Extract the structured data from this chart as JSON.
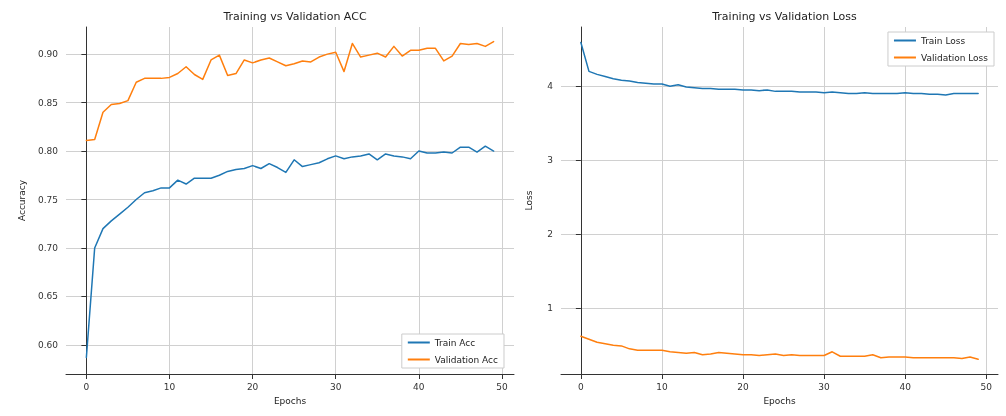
{
  "chart_data": [
    {
      "type": "line",
      "title": "Training vs Validation ACC",
      "xlabel": "Epochs",
      "ylabel": "Accuracy",
      "x": [
        0,
        1,
        2,
        3,
        4,
        5,
        6,
        7,
        8,
        9,
        10,
        11,
        12,
        13,
        14,
        15,
        16,
        17,
        18,
        19,
        20,
        21,
        22,
        23,
        24,
        25,
        26,
        27,
        28,
        29,
        30,
        31,
        32,
        33,
        34,
        35,
        36,
        37,
        38,
        39,
        40,
        41,
        42,
        43,
        44,
        45,
        46,
        47,
        48,
        49
      ],
      "series": [
        {
          "name": "Train Acc",
          "color": "#1f77b4",
          "values": [
            0.587,
            0.7,
            0.72,
            0.728,
            0.735,
            0.742,
            0.75,
            0.757,
            0.759,
            0.762,
            0.762,
            0.77,
            0.766,
            0.772,
            0.772,
            0.772,
            0.775,
            0.779,
            0.781,
            0.782,
            0.785,
            0.782,
            0.787,
            0.783,
            0.778,
            0.791,
            0.784,
            0.786,
            0.788,
            0.792,
            0.795,
            0.792,
            0.794,
            0.795,
            0.797,
            0.791,
            0.797,
            0.795,
            0.794,
            0.792,
            0.8,
            0.798,
            0.798,
            0.799,
            0.798,
            0.804,
            0.804,
            0.799,
            0.805,
            0.8
          ]
        },
        {
          "name": "Validation Acc",
          "color": "#ff7f0e",
          "values": [
            0.811,
            0.812,
            0.84,
            0.848,
            0.849,
            0.852,
            0.871,
            0.875,
            0.875,
            0.875,
            0.876,
            0.88,
            0.887,
            0.879,
            0.874,
            0.894,
            0.899,
            0.878,
            0.88,
            0.894,
            0.891,
            0.894,
            0.896,
            0.892,
            0.888,
            0.89,
            0.893,
            0.892,
            0.897,
            0.9,
            0.902,
            0.882,
            0.911,
            0.897,
            0.899,
            0.901,
            0.897,
            0.908,
            0.898,
            0.904,
            0.904,
            0.906,
            0.906,
            0.893,
            0.898,
            0.911,
            0.91,
            0.911,
            0.908,
            0.913
          ]
        }
      ],
      "xlim": [
        -2.45,
        51.45
      ],
      "xticks": [
        0,
        10,
        20,
        30,
        40,
        50
      ],
      "ylim": [
        0.57,
        0.928
      ],
      "yticks": [
        {
          "value": 0.6,
          "label": "0.60"
        },
        {
          "value": 0.65,
          "label": "0.65"
        },
        {
          "value": 0.7,
          "label": "0.70"
        },
        {
          "value": 0.75,
          "label": "0.75"
        },
        {
          "value": 0.8,
          "label": "0.80"
        },
        {
          "value": 0.85,
          "label": "0.85"
        },
        {
          "value": 0.9,
          "label": "0.90"
        }
      ],
      "grid": true,
      "legend": "bottom right",
      "marker": "none",
      "line_style": "solid"
    },
    {
      "type": "line",
      "title": "Training vs Validation Loss",
      "xlabel": "Epochs",
      "ylabel": "Loss",
      "x": [
        0,
        1,
        2,
        3,
        4,
        5,
        6,
        7,
        8,
        9,
        10,
        11,
        12,
        13,
        14,
        15,
        16,
        17,
        18,
        19,
        20,
        21,
        22,
        23,
        24,
        25,
        26,
        27,
        28,
        29,
        30,
        31,
        32,
        33,
        34,
        35,
        36,
        37,
        38,
        39,
        40,
        41,
        42,
        43,
        44,
        45,
        46,
        47,
        48,
        49
      ],
      "series": [
        {
          "name": "Train Loss",
          "color": "#1f77b4",
          "values": [
            4.59,
            4.2,
            4.16,
            4.13,
            4.1,
            4.08,
            4.07,
            4.05,
            4.04,
            4.03,
            4.03,
            4.0,
            4.02,
            3.99,
            3.98,
            3.97,
            3.97,
            3.96,
            3.96,
            3.96,
            3.95,
            3.95,
            3.94,
            3.95,
            3.93,
            3.93,
            3.93,
            3.92,
            3.92,
            3.92,
            3.91,
            3.92,
            3.91,
            3.9,
            3.9,
            3.91,
            3.9,
            3.9,
            3.9,
            3.9,
            3.91,
            3.9,
            3.9,
            3.89,
            3.89,
            3.88,
            3.9,
            3.9,
            3.9,
            3.9
          ]
        },
        {
          "name": "Validation Loss",
          "color": "#ff7f0e",
          "values": [
            0.62,
            0.58,
            0.54,
            0.52,
            0.5,
            0.49,
            0.45,
            0.43,
            0.43,
            0.43,
            0.43,
            0.41,
            0.4,
            0.39,
            0.4,
            0.37,
            0.38,
            0.4,
            0.39,
            0.38,
            0.37,
            0.37,
            0.36,
            0.37,
            0.38,
            0.36,
            0.37,
            0.36,
            0.36,
            0.36,
            0.36,
            0.41,
            0.35,
            0.35,
            0.35,
            0.35,
            0.37,
            0.33,
            0.34,
            0.34,
            0.34,
            0.33,
            0.33,
            0.33,
            0.33,
            0.33,
            0.33,
            0.32,
            0.34,
            0.31
          ]
        }
      ],
      "xlim": [
        -2.45,
        51.45
      ],
      "xticks": [
        0,
        10,
        20,
        30,
        40,
        50
      ],
      "ylim": [
        0.11,
        4.8
      ],
      "yticks": [
        1,
        2,
        3,
        4
      ],
      "grid": true,
      "legend": "top right",
      "marker": "none",
      "line_style": "solid"
    }
  ]
}
